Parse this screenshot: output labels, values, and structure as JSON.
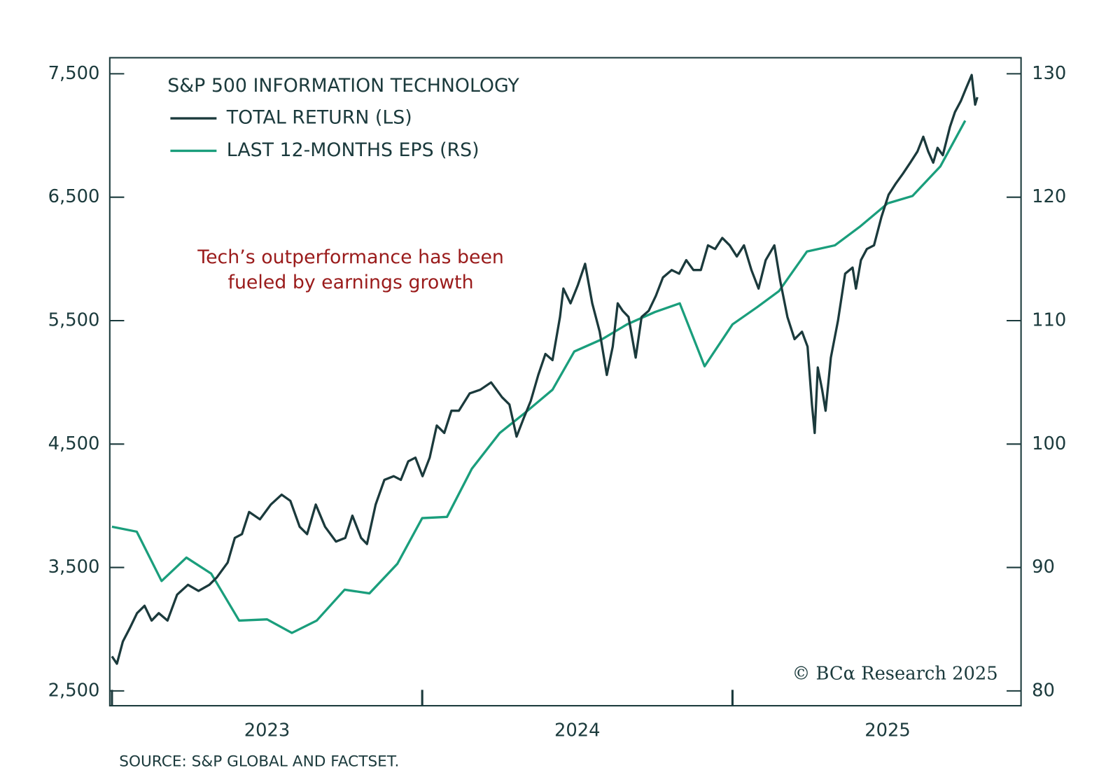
{
  "chart_data": {
    "type": "line",
    "title": "S&P 500 INFORMATION TECHNOLOGY",
    "annotation": "Tech’s outperformance has been\nfueled by earnings growth",
    "source": "SOURCE: S&P GLOBAL AND FACTSET.",
    "watermark": "© BCα Research 2025",
    "xlim": [
      2023,
      2025.93
    ],
    "xticks": [
      2023,
      2024,
      2025
    ],
    "ylim": [
      2380,
      7630
    ],
    "yticks": [
      {
        "value": 2500,
        "label": "2,500"
      },
      {
        "value": 3500,
        "label": "3,500"
      },
      {
        "value": 4500,
        "label": "4,500"
      },
      {
        "value": 5500,
        "label": "5,500"
      },
      {
        "value": 6500,
        "label": "6,500"
      },
      {
        "value": 7500,
        "label": "7,500"
      }
    ],
    "y2lim": [
      78.8,
      131.3
    ],
    "y2ticks": [
      80,
      90,
      100,
      110,
      120,
      130
    ],
    "series": [
      {
        "name": "TOTAL RETURN (LS)",
        "color": "#1b3a3c",
        "x": [
          2023.0,
          2023.016,
          2023.035,
          2023.058,
          2023.081,
          2023.105,
          2023.128,
          2023.151,
          2023.179,
          2023.21,
          2023.245,
          2023.279,
          2023.314,
          2023.338,
          2023.373,
          2023.396,
          2023.419,
          2023.442,
          2023.477,
          2023.512,
          2023.547,
          2023.575,
          2023.605,
          2023.629,
          2023.657,
          2023.687,
          2023.722,
          2023.752,
          2023.775,
          2023.803,
          2023.822,
          2023.85,
          2023.878,
          2023.908,
          2023.931,
          2023.955,
          2023.978,
          2024.001,
          2024.024,
          2024.047,
          2024.071,
          2024.094,
          2024.118,
          2024.153,
          2024.187,
          2024.222,
          2024.257,
          2024.281,
          2024.304,
          2024.327,
          2024.35,
          2024.374,
          2024.397,
          2024.42,
          2024.444,
          2024.455,
          2024.478,
          2024.502,
          2024.525,
          2024.548,
          2024.572,
          2024.595,
          2024.614,
          2024.63,
          2024.646,
          2024.665,
          2024.688,
          2024.707,
          2024.73,
          2024.753,
          2024.776,
          2024.804,
          2024.828,
          2024.851,
          2024.874,
          2024.898,
          2024.921,
          2024.944,
          2024.967,
          2024.991,
          2025.014,
          2025.037,
          2025.061,
          2025.084,
          2025.107,
          2025.135,
          2025.154,
          2025.177,
          2025.2,
          2025.224,
          2025.242,
          2025.256,
          2025.265,
          2025.275,
          2025.289,
          2025.3,
          2025.317,
          2025.34,
          2025.363,
          2025.387,
          2025.398,
          2025.414,
          2025.433,
          2025.456,
          2025.48,
          2025.503,
          2025.526,
          2025.549,
          2025.573,
          2025.596,
          2025.615,
          2025.631,
          2025.647,
          2025.661,
          2025.678,
          2025.701,
          2025.717,
          2025.736,
          2025.754,
          2025.771,
          2025.782,
          2025.789
        ],
        "values": [
          2780,
          2720,
          2900,
          3010,
          3130,
          3190,
          3070,
          3130,
          3070,
          3280,
          3360,
          3310,
          3360,
          3420,
          3540,
          3740,
          3770,
          3950,
          3890,
          4010,
          4090,
          4040,
          3830,
          3770,
          4010,
          3830,
          3710,
          3740,
          3920,
          3740,
          3690,
          4010,
          4210,
          4240,
          4210,
          4360,
          4390,
          4240,
          4390,
          4650,
          4590,
          4770,
          4770,
          4910,
          4940,
          5000,
          4880,
          4820,
          4560,
          4710,
          4850,
          5060,
          5230,
          5180,
          5530,
          5760,
          5640,
          5790,
          5960,
          5640,
          5410,
          5060,
          5290,
          5640,
          5580,
          5530,
          5200,
          5530,
          5580,
          5700,
          5850,
          5910,
          5880,
          5990,
          5910,
          5910,
          6110,
          6080,
          6170,
          6110,
          6020,
          6110,
          5910,
          5760,
          5990,
          6110,
          5820,
          5530,
          5350,
          5410,
          5290,
          4820,
          4590,
          5120,
          4940,
          4770,
          5200,
          5500,
          5880,
          5930,
          5760,
          5990,
          6080,
          6110,
          6340,
          6520,
          6610,
          6690,
          6780,
          6870,
          6990,
          6870,
          6780,
          6900,
          6840,
          7070,
          7190,
          7280,
          7390,
          7490,
          7250,
          7310
        ]
      },
      {
        "name": "LAST 12-MONTHS EPS (RS)",
        "color": "#1a9e7c",
        "axis": "y2",
        "x": [
          2023.0,
          2023.08,
          2023.16,
          2023.24,
          2023.32,
          2023.41,
          2023.5,
          2023.58,
          2023.66,
          2023.75,
          2023.83,
          2023.92,
          2024.0,
          2024.08,
          2024.16,
          2024.25,
          2024.33,
          2024.42,
          2024.49,
          2024.58,
          2024.66,
          2024.75,
          2024.83,
          2024.91,
          2025.0,
          2025.08,
          2025.15,
          2025.24,
          2025.33,
          2025.41,
          2025.5,
          2025.58,
          2025.67,
          2025.75
        ],
        "values": [
          93.3,
          92.9,
          88.9,
          90.8,
          89.5,
          85.7,
          85.8,
          84.7,
          85.7,
          88.2,
          87.9,
          90.3,
          94.0,
          94.1,
          98.0,
          100.9,
          102.5,
          104.4,
          107.5,
          108.5,
          109.7,
          110.7,
          111.4,
          106.3,
          109.7,
          111.1,
          112.4,
          115.6,
          116.1,
          117.6,
          119.5,
          120.1,
          122.5,
          126.2
        ]
      }
    ]
  }
}
